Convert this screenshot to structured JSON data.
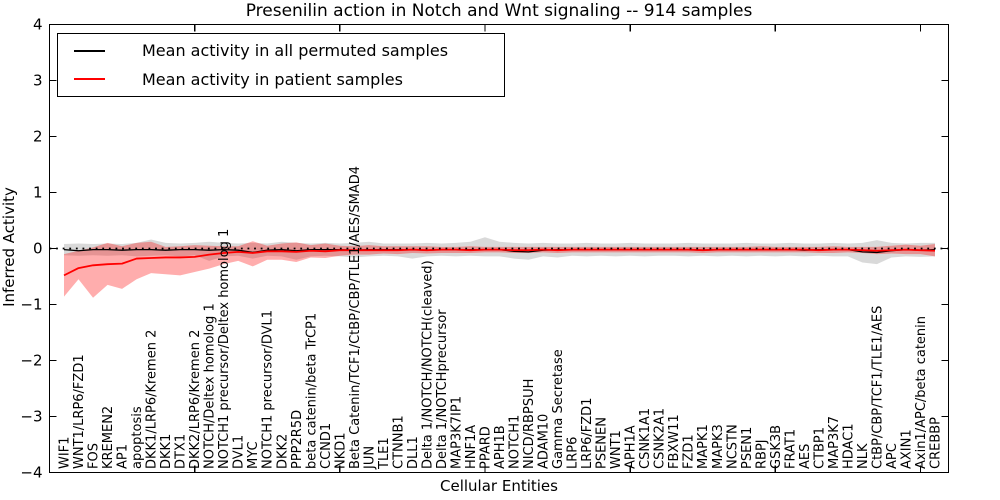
{
  "figure": {
    "background": "#ffffff"
  },
  "chart_data": {
    "type": "line",
    "title": "Presenilin action in Notch and Wnt signaling -- 914 samples",
    "xlabel": "Cellular Entities",
    "ylabel": "Inferred Activity",
    "ylim": [
      -4,
      4
    ],
    "grid": false,
    "legend_position": "upper left",
    "zero_line": {
      "value": 0,
      "style": "dotted",
      "color": "#000000"
    },
    "ytick_values": [
      4,
      3,
      2,
      1,
      0,
      -1,
      -2,
      -3,
      -4
    ],
    "ytick_labels": [
      "4",
      "3",
      "2",
      "1",
      "0",
      "−1",
      "−2",
      "−3",
      "−4"
    ],
    "xtick_indices": [
      9,
      19,
      29,
      39,
      49,
      59
    ],
    "categories": [
      "WIF1",
      "WNT1/LRP6/FZD1",
      "FOS",
      "KREMEN2",
      "AP1",
      "apoptosis",
      "DKK1/LRP6/Kremen 2",
      "DKK1",
      "DTX1",
      "DKK2/LRP6/Kremen 2",
      "NOTCH/Deltex homolog 1",
      "NOTCH1 precursor/Deltex homolog 1",
      "DVL1",
      "MYC",
      "NOTCH1 precursor/DVL1",
      "DKK2",
      "PPP2R5D",
      "beta catenin/beta TrCP1",
      "CCND1",
      "NKD1",
      "Beta Catenin/TCF1/CtBP/CBP/TLE1/AES/SMAD4",
      "JUN",
      "TLE1",
      "CTNNB1",
      "DLL1",
      "Delta 1/NOTCH/NOTCH(cleaved)",
      "Delta 1/NOTCHprecursor",
      "MAP3K7IP1",
      "HNF1A",
      "PPARD",
      "APH1B",
      "NOTCH1",
      "NICD/RBPSUH",
      "ADAM10",
      "Gamma Secretase",
      "LRP6",
      "LRP6/FZD1",
      "PSENEN",
      "WNT1",
      "APH1A",
      "CSNK1A1",
      "CSNK2A1",
      "FBXW11",
      "FZD1",
      "MAPK1",
      "MAPK3",
      "NCSTN",
      "PSEN1",
      "RBPJ",
      "GSK3B",
      "FRAT1",
      "AES",
      "CTBP1",
      "MAP3K7",
      "HDAC1",
      "NLK",
      "CtBP/CBP/TCF1/TLE1/AES",
      "APC",
      "AXIN1",
      "Axin1/APC/beta catenin",
      "CREBBP"
    ],
    "series": [
      {
        "name": "Mean activity in all permuted samples",
        "color": "#000000",
        "band_color": "#000000",
        "band_opacity": 0.15,
        "line_width": 1.3,
        "values": [
          -0.02,
          -0.04,
          -0.02,
          -0.02,
          -0.03,
          -0.02,
          -0.02,
          -0.03,
          -0.02,
          -0.02,
          -0.03,
          -0.02,
          -0.03,
          -0.07,
          -0.03,
          -0.02,
          -0.04,
          -0.02,
          -0.02,
          -0.02,
          -0.03,
          -0.02,
          -0.02,
          -0.02,
          -0.02,
          -0.03,
          -0.02,
          -0.02,
          -0.02,
          -0.02,
          -0.02,
          -0.05,
          -0.06,
          -0.03,
          -0.02,
          -0.02,
          -0.02,
          -0.02,
          -0.02,
          -0.02,
          -0.02,
          -0.02,
          -0.02,
          -0.02,
          -0.03,
          -0.02,
          -0.02,
          -0.02,
          -0.02,
          -0.02,
          -0.02,
          -0.03,
          -0.02,
          -0.02,
          -0.02,
          -0.06,
          -0.07,
          -0.04,
          -0.02,
          -0.03,
          -0.02
        ],
        "band_upper": [
          0.08,
          0.09,
          0.08,
          0.09,
          0.08,
          0.1,
          0.16,
          0.1,
          0.09,
          0.1,
          0.12,
          0.1,
          0.09,
          0.1,
          0.09,
          0.12,
          0.1,
          0.09,
          0.1,
          0.09,
          0.1,
          0.12,
          0.09,
          0.09,
          0.09,
          0.1,
          0.09,
          0.1,
          0.12,
          0.2,
          0.12,
          0.1,
          0.09,
          0.1,
          0.09,
          0.09,
          0.1,
          0.09,
          0.09,
          0.1,
          0.09,
          0.09,
          0.09,
          0.1,
          0.09,
          0.09,
          0.09,
          0.1,
          0.09,
          0.09,
          0.1,
          0.09,
          0.09,
          0.1,
          0.09,
          0.1,
          0.15,
          0.1,
          0.09,
          0.1,
          0.1
        ],
        "band_lower": [
          -0.12,
          -0.13,
          -0.12,
          -0.13,
          -0.12,
          -0.14,
          -0.13,
          -0.12,
          -0.14,
          -0.12,
          -0.22,
          -0.14,
          -0.13,
          -0.18,
          -0.13,
          -0.14,
          -0.2,
          -0.14,
          -0.13,
          -0.14,
          -0.16,
          -0.14,
          -0.13,
          -0.14,
          -0.18,
          -0.14,
          -0.13,
          -0.14,
          -0.13,
          -0.14,
          -0.14,
          -0.18,
          -0.2,
          -0.14,
          -0.16,
          -0.13,
          -0.14,
          -0.13,
          -0.14,
          -0.13,
          -0.14,
          -0.13,
          -0.13,
          -0.14,
          -0.13,
          -0.14,
          -0.13,
          -0.14,
          -0.13,
          -0.14,
          -0.13,
          -0.14,
          -0.13,
          -0.14,
          -0.14,
          -0.25,
          -0.28,
          -0.16,
          -0.14,
          -0.15,
          -0.14
        ]
      },
      {
        "name": "Mean activity in patient samples",
        "color": "#ff0000",
        "band_color": "#ff0000",
        "band_opacity": 0.32,
        "line_width": 1.8,
        "values": [
          -0.48,
          -0.35,
          -0.3,
          -0.28,
          -0.27,
          -0.18,
          -0.17,
          -0.16,
          -0.16,
          -0.15,
          -0.11,
          -0.08,
          -0.06,
          -0.08,
          -0.05,
          -0.05,
          -0.06,
          -0.04,
          -0.05,
          -0.03,
          -0.03,
          -0.03,
          -0.03,
          -0.03,
          -0.02,
          -0.03,
          -0.02,
          -0.02,
          -0.03,
          -0.02,
          -0.02,
          -0.03,
          -0.03,
          -0.02,
          -0.03,
          -0.02,
          -0.02,
          -0.02,
          -0.02,
          -0.02,
          -0.02,
          -0.02,
          -0.02,
          -0.02,
          -0.03,
          -0.02,
          -0.02,
          -0.02,
          -0.02,
          -0.02,
          -0.02,
          -0.02,
          -0.03,
          -0.02,
          -0.02,
          -0.03,
          -0.04,
          -0.03,
          -0.02,
          -0.03,
          -0.04
        ],
        "band_upper": [
          -0.1,
          -0.04,
          0.02,
          0.1,
          0.04,
          0.1,
          0.12,
          0.03,
          0.04,
          0.06,
          0.05,
          0.04,
          0.04,
          0.13,
          0.05,
          0.09,
          0.11,
          0.06,
          0.09,
          0.05,
          0.04,
          0.06,
          0.04,
          0.04,
          0.04,
          0.04,
          0.03,
          0.03,
          0.04,
          0.03,
          0.03,
          0.03,
          0.03,
          0.03,
          0.03,
          0.03,
          0.03,
          0.03,
          0.03,
          0.03,
          0.03,
          0.03,
          0.03,
          0.03,
          0.03,
          0.03,
          0.03,
          0.03,
          0.04,
          0.03,
          0.03,
          0.03,
          0.03,
          0.04,
          0.03,
          0.03,
          0.03,
          0.05,
          0.07,
          0.05,
          0.08
        ],
        "band_lower": [
          -0.86,
          -0.55,
          -0.88,
          -0.65,
          -0.72,
          -0.55,
          -0.44,
          -0.46,
          -0.48,
          -0.42,
          -0.36,
          -0.28,
          -0.22,
          -0.32,
          -0.2,
          -0.2,
          -0.24,
          -0.16,
          -0.17,
          -0.13,
          -0.11,
          -0.11,
          -0.09,
          -0.1,
          -0.08,
          -0.09,
          -0.08,
          -0.08,
          -0.08,
          -0.07,
          -0.07,
          -0.08,
          -0.08,
          -0.07,
          -0.08,
          -0.07,
          -0.07,
          -0.07,
          -0.07,
          -0.07,
          -0.07,
          -0.07,
          -0.07,
          -0.07,
          -0.08,
          -0.07,
          -0.07,
          -0.07,
          -0.07,
          -0.07,
          -0.07,
          -0.07,
          -0.08,
          -0.08,
          -0.07,
          -0.08,
          -0.1,
          -0.09,
          -0.1,
          -0.1,
          -0.14
        ]
      }
    ]
  }
}
